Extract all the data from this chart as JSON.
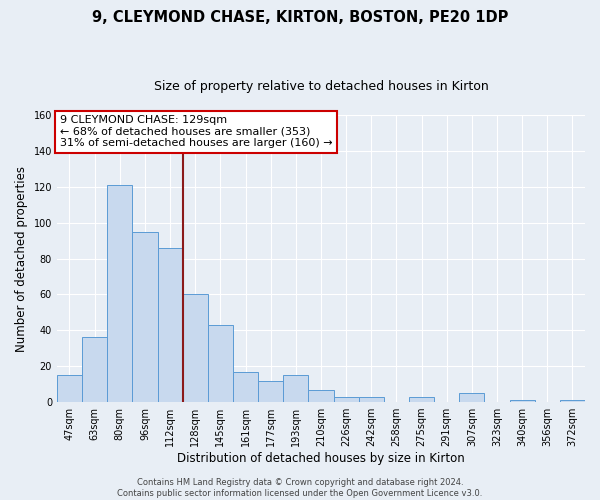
{
  "title": "9, CLEYMOND CHASE, KIRTON, BOSTON, PE20 1DP",
  "subtitle": "Size of property relative to detached houses in Kirton",
  "xlabel": "Distribution of detached houses by size in Kirton",
  "ylabel": "Number of detached properties",
  "bin_labels": [
    "47sqm",
    "63sqm",
    "80sqm",
    "96sqm",
    "112sqm",
    "128sqm",
    "145sqm",
    "161sqm",
    "177sqm",
    "193sqm",
    "210sqm",
    "226sqm",
    "242sqm",
    "258sqm",
    "275sqm",
    "291sqm",
    "307sqm",
    "323sqm",
    "340sqm",
    "356sqm",
    "372sqm"
  ],
  "bar_values": [
    15,
    36,
    121,
    95,
    86,
    60,
    43,
    17,
    12,
    15,
    7,
    3,
    3,
    0,
    3,
    0,
    5,
    0,
    1,
    0,
    1
  ],
  "bar_color": "#c8d9ee",
  "bar_edge_color": "#5b9bd5",
  "reference_line_color": "#8b1a1a",
  "reference_line_bin": 5,
  "ylim": [
    0,
    160
  ],
  "yticks": [
    0,
    20,
    40,
    60,
    80,
    100,
    120,
    140,
    160
  ],
  "annotation_line1": "9 CLEYMOND CHASE: 129sqm",
  "annotation_line2": "← 68% of detached houses are smaller (353)",
  "annotation_line3": "31% of semi-detached houses are larger (160) →",
  "annotation_box_facecolor": "#ffffff",
  "annotation_box_edgecolor": "#cc0000",
  "footer_line1": "Contains HM Land Registry data © Crown copyright and database right 2024.",
  "footer_line2": "Contains public sector information licensed under the Open Government Licence v3.0.",
  "background_color": "#e8eef5",
  "title_fontsize": 10.5,
  "subtitle_fontsize": 9,
  "axis_label_fontsize": 8.5,
  "tick_fontsize": 7,
  "annotation_fontsize": 8,
  "footer_fontsize": 6
}
